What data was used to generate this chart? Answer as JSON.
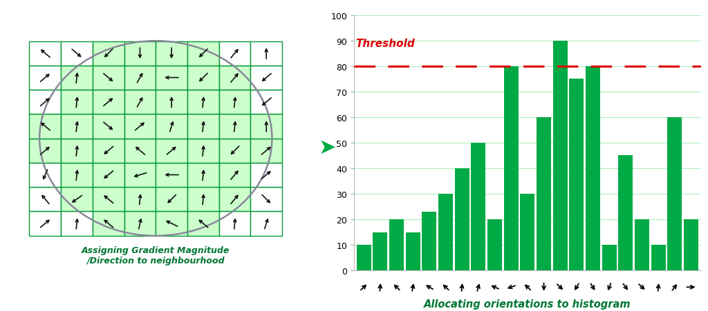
{
  "bar_values": [
    10,
    15,
    20,
    15,
    23,
    30,
    40,
    50,
    20,
    80,
    30,
    60,
    90,
    75,
    80,
    10,
    45,
    20,
    10,
    60,
    20
  ],
  "bar_color": "#00aa44",
  "threshold": 80,
  "threshold_color": "#dd0000",
  "threshold_label": "Threshold",
  "ylim": [
    0,
    100
  ],
  "yticks": [
    0,
    10,
    20,
    30,
    40,
    50,
    60,
    70,
    80,
    90,
    100
  ],
  "grid_color": "#aaeebb",
  "xlabel": "Allocating orientations to histogram",
  "xlabel_color": "#007733",
  "left_title": "Assigning Gradient Magnitude\n/Direction to neighbourhood",
  "left_title_color": "#007733",
  "arrow_angles_deg": [
    45,
    85,
    135,
    80,
    150,
    135,
    85,
    75,
    155,
    200,
    135,
    270,
    315,
    240,
    300,
    250,
    305,
    315,
    85,
    55,
    0
  ],
  "grid_fill_color": "#ccffcc",
  "circle_color": "#888899",
  "cell_border_color": "#009933",
  "n_cols": 8,
  "n_rows": 8,
  "arrow_color": "#111111",
  "cell_arrow_angles": [
    [
      45,
      85,
      135,
      80,
      150,
      135,
      85,
      75
    ],
    [
      125,
      220,
      135,
      85,
      230,
      85,
      55,
      310
    ],
    [
      250,
      85,
      225,
      200,
      180,
      85,
      55,
      45
    ],
    [
      45,
      85,
      225,
      135,
      45,
      85,
      230,
      45
    ],
    [
      135,
      85,
      315,
      45,
      75,
      85,
      85,
      90
    ],
    [
      45,
      85,
      45,
      65,
      90,
      85,
      85,
      225
    ],
    [
      45,
      85,
      315,
      65,
      180,
      230,
      55,
      225
    ],
    [
      135,
      315,
      230,
      270,
      270,
      230,
      55,
      90
    ]
  ]
}
